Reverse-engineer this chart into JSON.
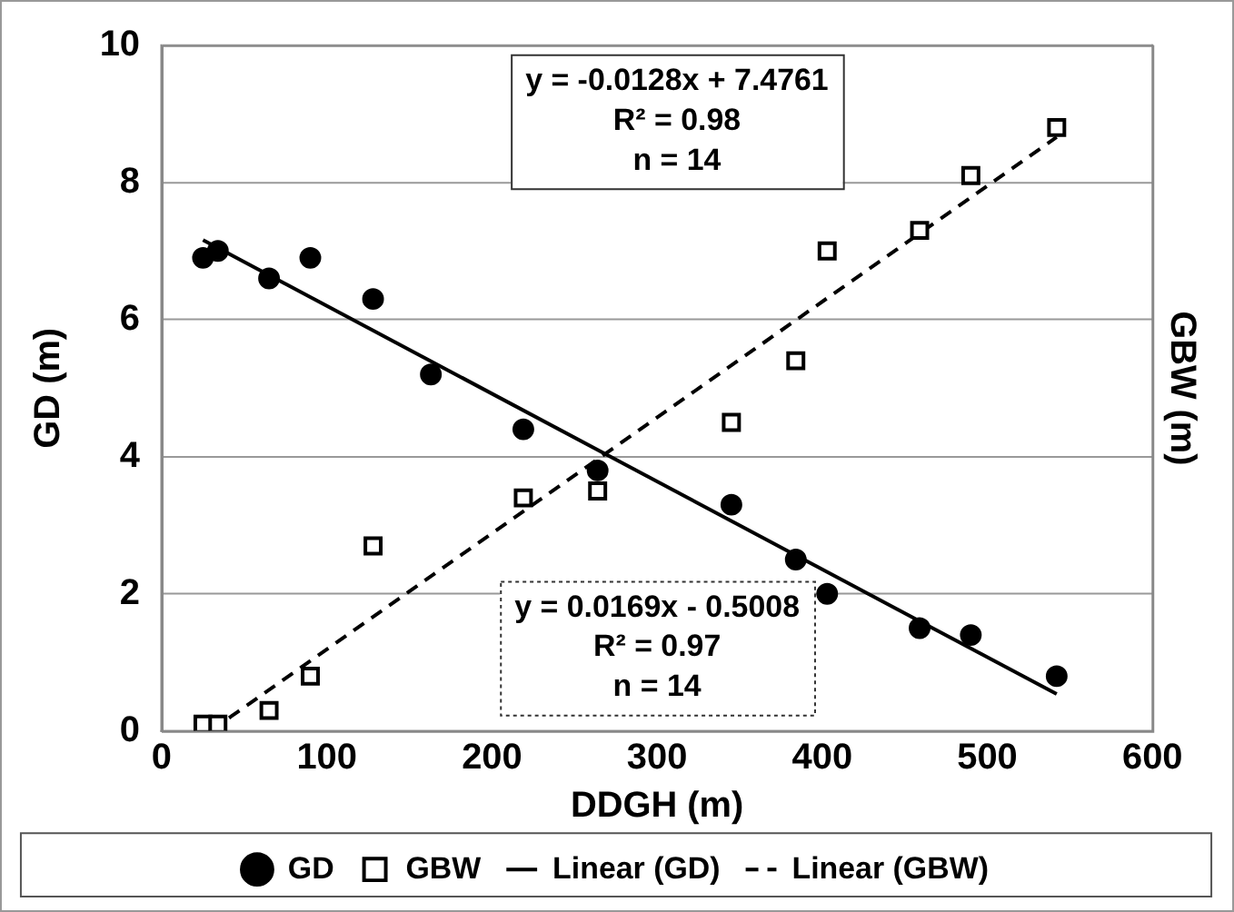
{
  "chart_data": {
    "type": "scatter",
    "xlabel": "DDGH (m)",
    "ylabel": "GD (m)",
    "y2label": "GBW (m)",
    "xlim": [
      0,
      600
    ],
    "xticks": [
      0,
      100,
      200,
      300,
      400,
      500,
      600
    ],
    "ylim": [
      0,
      10
    ],
    "yticks": [
      0,
      2,
      4,
      6,
      8,
      10
    ],
    "grid": "y",
    "legend": "bottom",
    "series": [
      {
        "name": "GD",
        "marker": "circle",
        "color": "#000000",
        "x": [
          25,
          34,
          65,
          90,
          128,
          163,
          219,
          264,
          345,
          384,
          403,
          459,
          490,
          542
        ],
        "values": [
          6.9,
          7.0,
          6.6,
          6.9,
          6.3,
          5.2,
          4.4,
          3.8,
          3.3,
          2.5,
          2.0,
          1.5,
          1.4,
          0.8
        ]
      },
      {
        "name": "GBW",
        "marker": "square",
        "color": "#000000",
        "x": [
          25,
          34,
          65,
          90,
          128,
          219,
          264,
          345,
          384,
          403,
          459,
          490,
          542
        ],
        "values": [
          0.1,
          0.1,
          0.3,
          0.8,
          2.7,
          3.4,
          3.5,
          4.5,
          5.4,
          7.0,
          7.3,
          8.1,
          8.8
        ]
      },
      {
        "name": "Linear (GD)",
        "type": "line",
        "line_style": "solid",
        "color": "#000000",
        "x": [
          25,
          542
        ],
        "values": [
          7.16,
          0.54
        ]
      },
      {
        "name": "Linear (GBW)",
        "type": "line",
        "line_style": "dashed",
        "color": "#000000",
        "x": [
          30,
          542
        ],
        "values": [
          0.01,
          8.66
        ]
      }
    ],
    "annotations": [
      "y = -0.0128x + 7.4761\nR² = 0.98\nn = 14",
      "y = 0.0169x - 0.5008\nR² = 0.97\nn = 14"
    ]
  }
}
